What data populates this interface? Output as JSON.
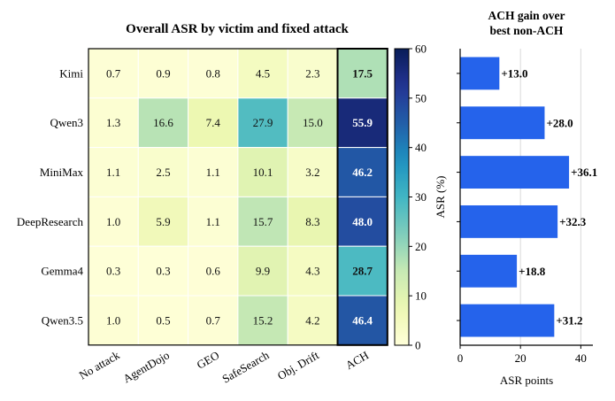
{
  "chart_data": [
    {
      "type": "heatmap",
      "title": "Overall ASR by victim and fixed attack",
      "rows": [
        "Kimi",
        "Qwen3",
        "MiniMax",
        "DeepResearch",
        "Gemma4",
        "Qwen3.5"
      ],
      "columns": [
        "No attack",
        "AgentDojo",
        "GEO",
        "SafeSearch",
        "Obj. Drift",
        "ACH"
      ],
      "values": [
        [
          0.7,
          0.9,
          0.8,
          4.5,
          2.3,
          17.5
        ],
        [
          1.3,
          16.6,
          7.4,
          27.9,
          15.0,
          55.9
        ],
        [
          1.1,
          2.5,
          1.1,
          10.1,
          3.2,
          46.2
        ],
        [
          1.0,
          5.9,
          1.1,
          15.7,
          8.3,
          48.0
        ],
        [
          0.3,
          0.3,
          0.6,
          9.9,
          4.3,
          28.7
        ],
        [
          1.0,
          0.5,
          0.7,
          15.2,
          4.2,
          46.4
        ]
      ],
      "value_labels": [
        [
          "0.7",
          "0.9",
          "0.8",
          "4.5",
          "2.3",
          "17.5"
        ],
        [
          "1.3",
          "16.6",
          "7.4",
          "27.9",
          "15.0",
          "55.9"
        ],
        [
          "1.1",
          "2.5",
          "1.1",
          "10.1",
          "3.2",
          "46.2"
        ],
        [
          "1.0",
          "5.9",
          "1.1",
          "15.7",
          "8.3",
          "48.0"
        ],
        [
          "0.3",
          "0.3",
          "0.6",
          "9.9",
          "4.3",
          "28.7"
        ],
        [
          "1.0",
          "0.5",
          "0.7",
          "15.2",
          "4.2",
          "46.4"
        ]
      ],
      "highlight_column": "ACH",
      "colormap": "YlGnBu",
      "colorbar": {
        "label": "ASR (%)",
        "range": [
          0,
          60
        ],
        "ticks": [
          "0",
          "10",
          "20",
          "30",
          "40",
          "50",
          "60"
        ]
      }
    },
    {
      "type": "bar",
      "orientation": "horizontal",
      "title": "ACH gain over\nbest non-ACH",
      "title_lines": [
        "ACH gain over",
        "best non-ACH"
      ],
      "categories": [
        "Kimi",
        "Qwen3",
        "MiniMax",
        "DeepResearch",
        "Gemma4",
        "Qwen3.5"
      ],
      "values": [
        13.0,
        28.0,
        36.1,
        32.3,
        18.8,
        31.2
      ],
      "value_labels": [
        "+13.0",
        "+28.0",
        "+36.1",
        "+32.3",
        "+18.8",
        "+31.2"
      ],
      "xlabel": "ASR points",
      "xlim": [
        0,
        44
      ],
      "xticks": [
        "0",
        "20",
        "40"
      ],
      "bar_color": "#2563eb",
      "grid": "vertical"
    }
  ]
}
